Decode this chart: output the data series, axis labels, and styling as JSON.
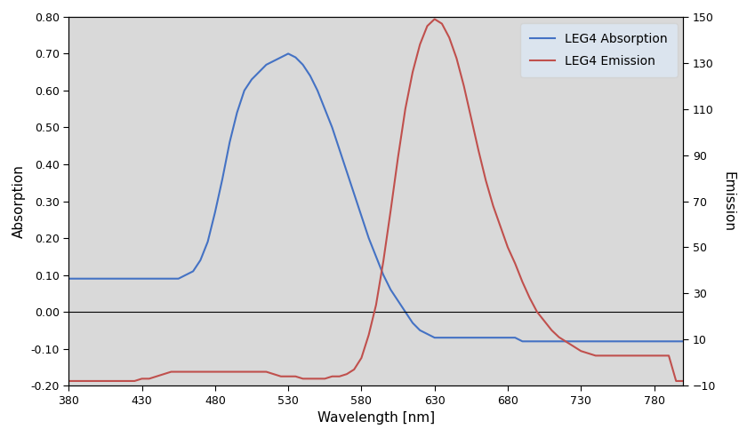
{
  "title": "",
  "xlabel": "Wavelength [nm]",
  "ylabel_left": "Absorption",
  "ylabel_right": "Emission",
  "x_min": 380,
  "x_max": 800,
  "y_left_min": -0.2,
  "y_left_max": 0.8,
  "y_right_min": -10,
  "y_right_max": 150,
  "x_ticks": [
    380,
    430,
    480,
    530,
    580,
    630,
    680,
    730,
    780
  ],
  "y_left_ticks": [
    -0.2,
    -0.1,
    0.0,
    0.1,
    0.2,
    0.3,
    0.4,
    0.5,
    0.6,
    0.7,
    0.8
  ],
  "y_right_ticks": [
    -10,
    10,
    30,
    50,
    70,
    90,
    110,
    130,
    150
  ],
  "absorption_color": "#4472C4",
  "emission_color": "#C0504D",
  "legend_absorption": "LEG4 Absorption",
  "legend_emission": "LEG4 Emission",
  "background_color": "#d9d9d9",
  "legend_facecolor": "#dce6f1",
  "zero_line_color": "#000000",
  "grid": false,
  "absorption_x": [
    380,
    385,
    390,
    395,
    400,
    405,
    410,
    415,
    420,
    425,
    430,
    435,
    440,
    445,
    450,
    455,
    460,
    465,
    470,
    475,
    480,
    485,
    490,
    495,
    500,
    505,
    510,
    515,
    520,
    525,
    530,
    535,
    540,
    545,
    550,
    555,
    560,
    565,
    570,
    575,
    580,
    585,
    590,
    595,
    600,
    605,
    610,
    615,
    620,
    625,
    630,
    635,
    640,
    645,
    650,
    655,
    660,
    665,
    670,
    675,
    680,
    685,
    690,
    695,
    700,
    705,
    710,
    715,
    720,
    725,
    730,
    735,
    740,
    745,
    750,
    755,
    760,
    765,
    770,
    775,
    780,
    785,
    790,
    795,
    800
  ],
  "absorption_y": [
    0.09,
    0.09,
    0.09,
    0.09,
    0.09,
    0.09,
    0.09,
    0.09,
    0.09,
    0.09,
    0.09,
    0.09,
    0.09,
    0.09,
    0.09,
    0.09,
    0.1,
    0.11,
    0.14,
    0.19,
    0.27,
    0.36,
    0.46,
    0.54,
    0.6,
    0.63,
    0.65,
    0.67,
    0.68,
    0.69,
    0.7,
    0.69,
    0.67,
    0.64,
    0.6,
    0.55,
    0.5,
    0.44,
    0.38,
    0.32,
    0.26,
    0.2,
    0.15,
    0.1,
    0.06,
    0.03,
    0.0,
    -0.03,
    -0.05,
    -0.06,
    -0.07,
    -0.07,
    -0.07,
    -0.07,
    -0.07,
    -0.07,
    -0.07,
    -0.07,
    -0.07,
    -0.07,
    -0.07,
    -0.07,
    -0.08,
    -0.08,
    -0.08,
    -0.08,
    -0.08,
    -0.08,
    -0.08,
    -0.08,
    -0.08,
    -0.08,
    -0.08,
    -0.08,
    -0.08,
    -0.08,
    -0.08,
    -0.08,
    -0.08,
    -0.08,
    -0.08,
    -0.08,
    -0.08,
    -0.08,
    -0.08
  ],
  "emission_x": [
    380,
    385,
    390,
    395,
    400,
    405,
    410,
    415,
    420,
    425,
    430,
    435,
    440,
    445,
    450,
    455,
    460,
    465,
    470,
    475,
    480,
    485,
    490,
    495,
    500,
    505,
    510,
    515,
    520,
    525,
    530,
    535,
    540,
    545,
    550,
    555,
    560,
    565,
    570,
    575,
    580,
    585,
    590,
    595,
    600,
    605,
    610,
    615,
    620,
    625,
    630,
    635,
    640,
    645,
    650,
    655,
    660,
    665,
    670,
    675,
    680,
    685,
    690,
    695,
    700,
    705,
    710,
    715,
    720,
    725,
    730,
    735,
    740,
    745,
    750,
    755,
    760,
    765,
    770,
    775,
    780,
    785,
    790,
    795,
    800
  ],
  "emission_y": [
    -8,
    -8,
    -8,
    -8,
    -8,
    -8,
    -8,
    -8,
    -8,
    -8,
    -7,
    -7,
    -6,
    -5,
    -4,
    -4,
    -4,
    -4,
    -4,
    -4,
    -4,
    -4,
    -4,
    -4,
    -4,
    -4,
    -4,
    -4,
    -5,
    -6,
    -6,
    -6,
    -7,
    -7,
    -7,
    -7,
    -6,
    -6,
    -5,
    -3,
    2,
    12,
    25,
    44,
    66,
    89,
    110,
    126,
    138,
    146,
    149,
    147,
    141,
    132,
    120,
    106,
    92,
    79,
    68,
    59,
    50,
    43,
    35,
    28,
    22,
    18,
    14,
    11,
    9,
    7,
    5,
    4,
    3,
    3,
    3,
    3,
    3,
    3,
    3,
    3,
    3,
    3,
    3,
    -8,
    -8
  ]
}
